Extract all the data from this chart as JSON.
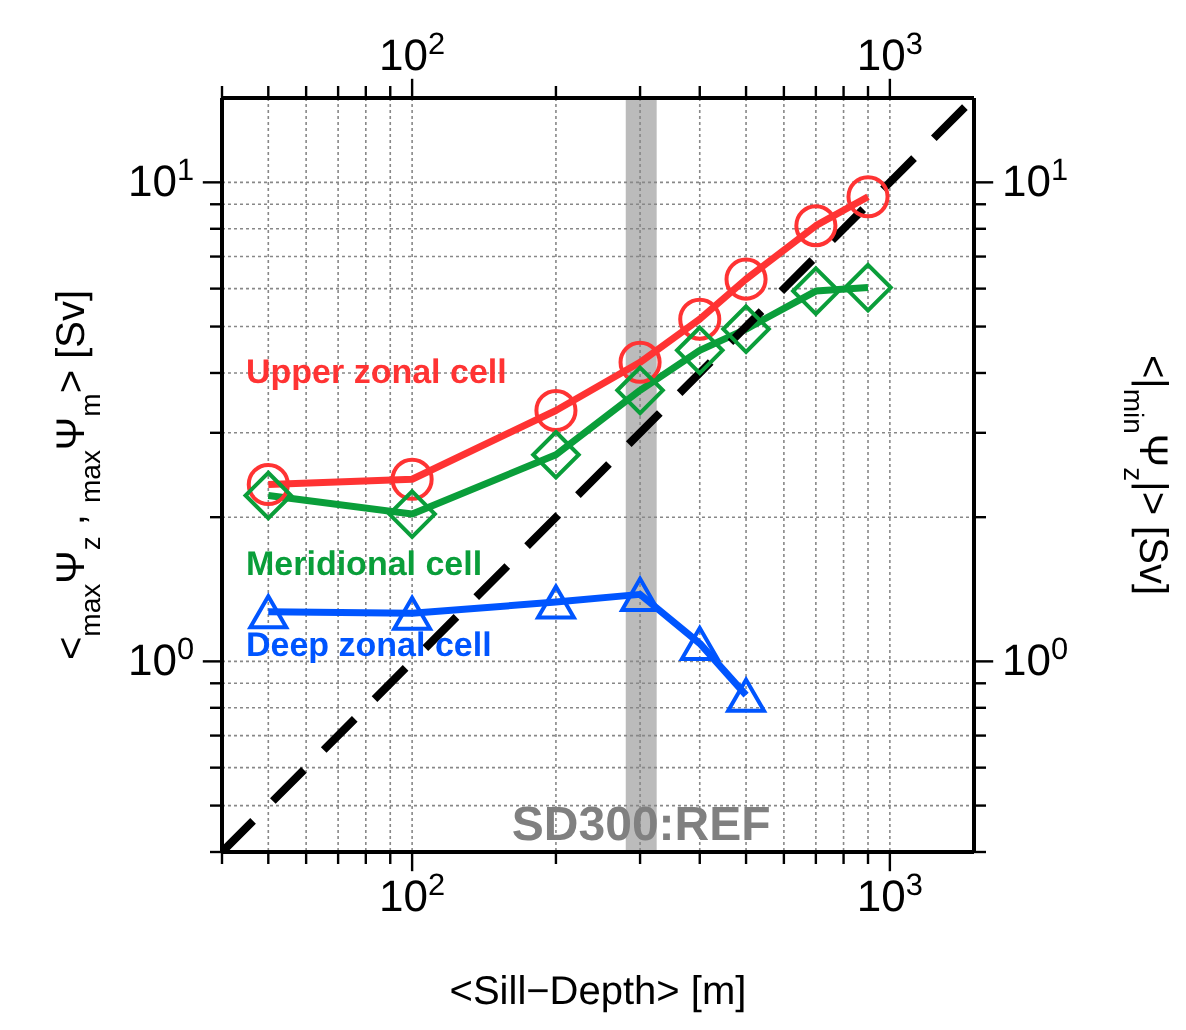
{
  "chart_data": {
    "type": "line",
    "xlabel": "<Sill−Depth> [m]",
    "ylabel": "<$_{max}$Ψ$_{z}$ , $_{max}$Ψ$_{m}$> [Sv]",
    "y2label": "<|$_{min}$Ψ$_{z}$|> [Sv]",
    "x": [
      50,
      100,
      200,
      300,
      400,
      500,
      700,
      900
    ],
    "series": [
      {
        "name": "Upper zonal cell",
        "color": "#ff3333",
        "marker": "circle",
        "values": [
          2.34,
          2.4,
          3.34,
          4.21,
          5.18,
          6.28,
          8.12,
          9.33
        ]
      },
      {
        "name": "Meridional cell",
        "color": "#0a9e3a",
        "marker": "diamond",
        "values": [
          2.22,
          2.03,
          2.7,
          3.68,
          4.46,
          4.94,
          5.93,
          6.03
        ]
      },
      {
        "name": "Deep zonal cell",
        "color": "#0055ff",
        "marker": "triangle",
        "values": [
          1.27,
          1.26,
          1.33,
          1.38,
          1.09,
          0.85,
          null,
          null
        ]
      },
      {
        "type": "line",
        "color": "#000000",
        "line_style": "dashed",
        "marker": "none",
        "x": [
          40,
          1500
        ],
        "values": [
          0.4,
          15
        ]
      }
    ],
    "log": "xy",
    "grid": true,
    "legend": false,
    "xlim": [
      40,
      1500
    ],
    "ylim": [
      0.4,
      15
    ],
    "xticks": [
      {
        "value": 40,
        "label": null
      },
      {
        "value": 50,
        "label": null
      },
      {
        "value": 60,
        "label": null
      },
      {
        "value": 70,
        "label": null
      },
      {
        "value": 80,
        "label": null
      },
      {
        "value": 90,
        "label": null
      },
      {
        "value": 100,
        "label": "10$^{2}$"
      },
      {
        "value": 200,
        "label": null
      },
      {
        "value": 300,
        "label": null
      },
      {
        "value": 400,
        "label": null
      },
      {
        "value": 500,
        "label": null
      },
      {
        "value": 600,
        "label": null
      },
      {
        "value": 700,
        "label": null
      },
      {
        "value": 800,
        "label": null
      },
      {
        "value": 900,
        "label": null
      },
      {
        "value": 1000,
        "label": "10$^{3}$"
      }
    ],
    "yticks": [
      {
        "value": 0.4,
        "label": null
      },
      {
        "value": 0.5,
        "label": null
      },
      {
        "value": 0.6,
        "label": null
      },
      {
        "value": 0.7,
        "label": null
      },
      {
        "value": 0.8,
        "label": null
      },
      {
        "value": 0.9,
        "label": null
      },
      {
        "value": 1,
        "label": "10$^{0}$"
      },
      {
        "value": 2,
        "label": null
      },
      {
        "value": 3,
        "label": null
      },
      {
        "value": 4,
        "label": null
      },
      {
        "value": 5,
        "label": null
      },
      {
        "value": 6,
        "label": null
      },
      {
        "value": 7,
        "label": null
      },
      {
        "value": 8,
        "label": null
      },
      {
        "value": 9,
        "label": null
      },
      {
        "value": 10,
        "label": "10$^{1}$"
      }
    ],
    "bands": [
      {
        "axis": "x",
        "from": 280,
        "to": 325,
        "label": "SD300:REF",
        "color": "#bbbbbb"
      }
    ]
  }
}
